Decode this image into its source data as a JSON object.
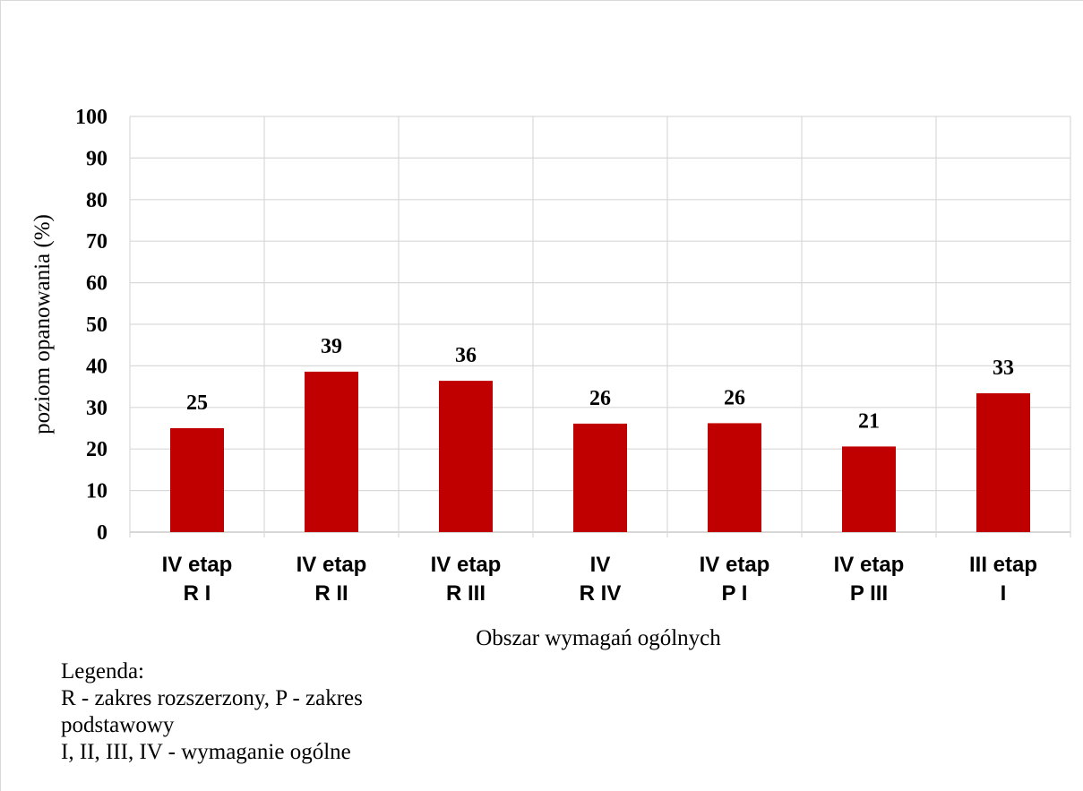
{
  "chart_data": {
    "type": "bar",
    "categories": [
      [
        "IV etap",
        "R I"
      ],
      [
        "IV etap",
        "R II"
      ],
      [
        "IV etap",
        "R III"
      ],
      [
        "IV",
        "R IV"
      ],
      [
        "IV etap",
        "P I"
      ],
      [
        "IV etap",
        "P III"
      ],
      [
        "III etap",
        "I"
      ]
    ],
    "values": [
      25,
      38.6,
      36.4,
      26.1,
      26.2,
      20.6,
      33.4
    ],
    "data_labels": [
      "25",
      "39",
      "36",
      "26",
      "26",
      "21",
      "33"
    ],
    "ylim": [
      0,
      100
    ],
    "yticks": [
      "0",
      "10",
      "20",
      "30",
      "40",
      "50",
      "60",
      "70",
      "80",
      "90",
      "100"
    ],
    "xlabel": "Obszar wymagań ogólnych",
    "ylabel": "poziom opanowania (%)",
    "bar_color": "#c00000",
    "grid": true,
    "title": ""
  },
  "legend": {
    "heading": "Legenda:",
    "line1": "R - zakres rozszerzony, P - zakres",
    "line2": "podstawowy",
    "line3": "I, II, III, IV - wymaganie ogólne"
  }
}
